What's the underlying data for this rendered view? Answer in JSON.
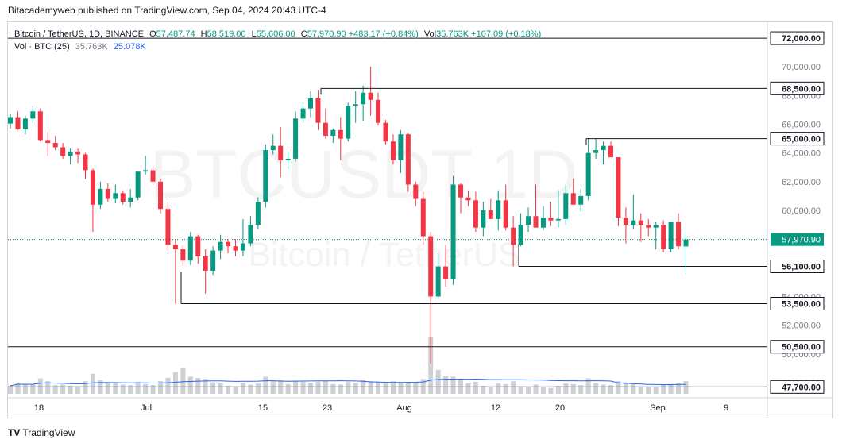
{
  "publisher_line": "Bitacademyweb published on TradingView.com, Sep 04, 2024 20:43 UTC-4",
  "legend": {
    "symbol": "Bitcoin / TetherUS, 1D, BINANCE",
    "o_label": "O",
    "o_value": "57,487.74",
    "h_label": "H",
    "h_value": "58,519.00",
    "l_label": "L",
    "l_value": "55,606.00",
    "c_label": "C",
    "c_value": "57,970.90",
    "change": "+483.17 (+0.84%)",
    "vol_label": "Vol",
    "vol_value": "35.763K",
    "vol_change": "+107.09 (+0.18%)",
    "vol_row_label": "Vol · BTC (25)",
    "vol_row_value": "35.763K",
    "vol_ma_value": "25.078K"
  },
  "watermark": {
    "line1": "BTCUSDT 1D",
    "line2": "Bitcoin / TetherUS"
  },
  "brand": {
    "mark": "TV",
    "name": "TradingView"
  },
  "colors": {
    "up": "#089981",
    "down": "#f23645",
    "vol_bar": "#cfd0d3",
    "vol_ma": "#2962ff",
    "level_line": "#131722",
    "last_price_bg": "#089981"
  },
  "chart_data": {
    "type": "candlestick",
    "symbol": "BTCUSDT",
    "timeframe": "1D",
    "exchange": "BINANCE",
    "ylim": [
      47000,
      73000
    ],
    "y_ticks": [
      "72,000.00",
      "70,000.00",
      "68,000.00",
      "66,000.00",
      "64,000.00",
      "62,000.00",
      "60,000.00",
      "58,000.00",
      "56,000.00",
      "54,000.00",
      "52,000.00",
      "50,000.00",
      "48,000.00"
    ],
    "x_ticks": [
      "18",
      "Jul",
      "15",
      "23",
      "Aug",
      "12",
      "20",
      "Sep",
      "9"
    ],
    "last_price": "57,970.90",
    "horizontal_levels": [
      {
        "price": 72000,
        "label": "72,000.00"
      },
      {
        "price": 68500,
        "label": "68,500.00"
      },
      {
        "price": 65000,
        "label": "65,000.00"
      },
      {
        "price": 56100,
        "label": "56,100.00"
      },
      {
        "price": 53500,
        "label": "53,500.00"
      },
      {
        "price": 50500,
        "label": "50,500.00"
      },
      {
        "price": 47700,
        "label": "47,700.00"
      }
    ],
    "candles": [
      {
        "o": 66050,
        "h": 66700,
        "l": 65700,
        "c": 66500,
        "v": 14
      },
      {
        "o": 66500,
        "h": 66900,
        "l": 65600,
        "c": 65650,
        "v": 19
      },
      {
        "o": 65650,
        "h": 66600,
        "l": 65300,
        "c": 66400,
        "v": 17
      },
      {
        "o": 66400,
        "h": 67300,
        "l": 66100,
        "c": 66900,
        "v": 16
      },
      {
        "o": 66900,
        "h": 67100,
        "l": 64800,
        "c": 64900,
        "v": 27
      },
      {
        "o": 64900,
        "h": 65500,
        "l": 63800,
        "c": 64700,
        "v": 22
      },
      {
        "o": 64700,
        "h": 65200,
        "l": 64200,
        "c": 64400,
        "v": 15
      },
      {
        "o": 64400,
        "h": 64700,
        "l": 63600,
        "c": 63800,
        "v": 16
      },
      {
        "o": 63800,
        "h": 64300,
        "l": 63200,
        "c": 64100,
        "v": 14
      },
      {
        "o": 64100,
        "h": 64300,
        "l": 63300,
        "c": 63900,
        "v": 13
      },
      {
        "o": 63900,
        "h": 64000,
        "l": 62200,
        "c": 62800,
        "v": 22
      },
      {
        "o": 62800,
        "h": 62900,
        "l": 58500,
        "c": 60400,
        "v": 35
      },
      {
        "o": 60400,
        "h": 62000,
        "l": 60100,
        "c": 61500,
        "v": 24
      },
      {
        "o": 61500,
        "h": 61900,
        "l": 60600,
        "c": 60800,
        "v": 20
      },
      {
        "o": 60800,
        "h": 61800,
        "l": 60500,
        "c": 61200,
        "v": 18
      },
      {
        "o": 61200,
        "h": 61400,
        "l": 60400,
        "c": 60600,
        "v": 16
      },
      {
        "o": 60600,
        "h": 61500,
        "l": 60200,
        "c": 60900,
        "v": 15
      },
      {
        "o": 60900,
        "h": 62600,
        "l": 60700,
        "c": 62700,
        "v": 21
      },
      {
        "o": 62700,
        "h": 63800,
        "l": 62500,
        "c": 62800,
        "v": 17
      },
      {
        "o": 62800,
        "h": 63100,
        "l": 61800,
        "c": 62000,
        "v": 15
      },
      {
        "o": 62000,
        "h": 62200,
        "l": 59800,
        "c": 60100,
        "v": 22
      },
      {
        "o": 60100,
        "h": 60600,
        "l": 57200,
        "c": 57600,
        "v": 28
      },
      {
        "o": 57600,
        "h": 58000,
        "l": 53500,
        "c": 57300,
        "v": 38
      },
      {
        "o": 57300,
        "h": 57600,
        "l": 56100,
        "c": 56500,
        "v": 45
      },
      {
        "o": 56500,
        "h": 58500,
        "l": 56200,
        "c": 58200,
        "v": 30
      },
      {
        "o": 58200,
        "h": 58300,
        "l": 56300,
        "c": 56800,
        "v": 28
      },
      {
        "o": 56800,
        "h": 57300,
        "l": 54200,
        "c": 55800,
        "v": 26
      },
      {
        "o": 55800,
        "h": 57500,
        "l": 55500,
        "c": 57200,
        "v": 20
      },
      {
        "o": 57200,
        "h": 58300,
        "l": 56600,
        "c": 57800,
        "v": 18
      },
      {
        "o": 57800,
        "h": 58000,
        "l": 57000,
        "c": 57500,
        "v": 14
      },
      {
        "o": 57500,
        "h": 58000,
        "l": 56800,
        "c": 57200,
        "v": 13
      },
      {
        "o": 57200,
        "h": 59400,
        "l": 56800,
        "c": 57700,
        "v": 19
      },
      {
        "o": 57700,
        "h": 59600,
        "l": 57500,
        "c": 59000,
        "v": 16
      },
      {
        "o": 59000,
        "h": 60900,
        "l": 58700,
        "c": 60600,
        "v": 18
      },
      {
        "o": 60600,
        "h": 64600,
        "l": 60200,
        "c": 64200,
        "v": 30
      },
      {
        "o": 64200,
        "h": 65300,
        "l": 63900,
        "c": 64500,
        "v": 22
      },
      {
        "o": 64500,
        "h": 65800,
        "l": 62300,
        "c": 63500,
        "v": 24
      },
      {
        "o": 63500,
        "h": 64100,
        "l": 62900,
        "c": 63600,
        "v": 17
      },
      {
        "o": 63600,
        "h": 66900,
        "l": 63400,
        "c": 66400,
        "v": 23
      },
      {
        "o": 66400,
        "h": 67500,
        "l": 66100,
        "c": 67100,
        "v": 21
      },
      {
        "o": 67100,
        "h": 68300,
        "l": 66500,
        "c": 67800,
        "v": 19
      },
      {
        "o": 67800,
        "h": 68400,
        "l": 65600,
        "c": 66100,
        "v": 21
      },
      {
        "o": 66100,
        "h": 67100,
        "l": 65000,
        "c": 65200,
        "v": 23
      },
      {
        "o": 65200,
        "h": 65700,
        "l": 64700,
        "c": 65600,
        "v": 17
      },
      {
        "o": 65600,
        "h": 66500,
        "l": 63500,
        "c": 65000,
        "v": 16
      },
      {
        "o": 65000,
        "h": 67500,
        "l": 64800,
        "c": 67300,
        "v": 21
      },
      {
        "o": 67300,
        "h": 68300,
        "l": 66100,
        "c": 67400,
        "v": 19
      },
      {
        "o": 67400,
        "h": 68700,
        "l": 66200,
        "c": 68200,
        "v": 24
      },
      {
        "o": 68200,
        "h": 70000,
        "l": 66600,
        "c": 67700,
        "v": 22
      },
      {
        "o": 67700,
        "h": 68200,
        "l": 65900,
        "c": 66100,
        "v": 21
      },
      {
        "o": 66100,
        "h": 66300,
        "l": 64600,
        "c": 64800,
        "v": 18
      },
      {
        "o": 64800,
        "h": 65300,
        "l": 63200,
        "c": 63500,
        "v": 22
      },
      {
        "o": 63500,
        "h": 65600,
        "l": 62600,
        "c": 65300,
        "v": 19
      },
      {
        "o": 65300,
        "h": 65400,
        "l": 61300,
        "c": 61800,
        "v": 20
      },
      {
        "o": 61800,
        "h": 62000,
        "l": 60300,
        "c": 60800,
        "v": 19
      },
      {
        "o": 60800,
        "h": 61300,
        "l": 57600,
        "c": 58200,
        "v": 26
      },
      {
        "o": 58200,
        "h": 58500,
        "l": 49300,
        "c": 54000,
        "v": 100
      },
      {
        "o": 54000,
        "h": 57000,
        "l": 53800,
        "c": 56100,
        "v": 42
      },
      {
        "o": 56100,
        "h": 57600,
        "l": 54700,
        "c": 55200,
        "v": 32
      },
      {
        "o": 55200,
        "h": 62400,
        "l": 54800,
        "c": 61800,
        "v": 30
      },
      {
        "o": 61800,
        "h": 61900,
        "l": 59800,
        "c": 60900,
        "v": 26
      },
      {
        "o": 60900,
        "h": 61400,
        "l": 60300,
        "c": 60700,
        "v": 19
      },
      {
        "o": 60700,
        "h": 61300,
        "l": 58500,
        "c": 58800,
        "v": 21
      },
      {
        "o": 58800,
        "h": 60600,
        "l": 58200,
        "c": 60000,
        "v": 14
      },
      {
        "o": 60000,
        "h": 60800,
        "l": 59600,
        "c": 59400,
        "v": 11
      },
      {
        "o": 59400,
        "h": 61400,
        "l": 58600,
        "c": 60700,
        "v": 19
      },
      {
        "o": 60700,
        "h": 61800,
        "l": 58600,
        "c": 58800,
        "v": 17
      },
      {
        "o": 58800,
        "h": 59600,
        "l": 56100,
        "c": 57600,
        "v": 22
      },
      {
        "o": 57600,
        "h": 59800,
        "l": 57500,
        "c": 59000,
        "v": 13
      },
      {
        "o": 59000,
        "h": 60200,
        "l": 58500,
        "c": 59600,
        "v": 11
      },
      {
        "o": 59600,
        "h": 61800,
        "l": 58900,
        "c": 58800,
        "v": 16
      },
      {
        "o": 58800,
        "h": 60300,
        "l": 58600,
        "c": 59500,
        "v": 12
      },
      {
        "o": 59500,
        "h": 60600,
        "l": 58900,
        "c": 59300,
        "v": 10
      },
      {
        "o": 59300,
        "h": 61400,
        "l": 58800,
        "c": 59400,
        "v": 14
      },
      {
        "o": 59400,
        "h": 61800,
        "l": 59000,
        "c": 61200,
        "v": 18
      },
      {
        "o": 61200,
        "h": 62200,
        "l": 60500,
        "c": 60400,
        "v": 17
      },
      {
        "o": 60400,
        "h": 61500,
        "l": 59900,
        "c": 61000,
        "v": 15
      },
      {
        "o": 61000,
        "h": 65000,
        "l": 60700,
        "c": 64000,
        "v": 27
      },
      {
        "o": 64000,
        "h": 65000,
        "l": 63600,
        "c": 64200,
        "v": 19
      },
      {
        "o": 64200,
        "h": 64800,
        "l": 63200,
        "c": 64500,
        "v": 16
      },
      {
        "o": 64500,
        "h": 64800,
        "l": 63800,
        "c": 63700,
        "v": 15
      },
      {
        "o": 63700,
        "h": 63700,
        "l": 58900,
        "c": 59500,
        "v": 22
      },
      {
        "o": 59500,
        "h": 60200,
        "l": 57700,
        "c": 59000,
        "v": 20
      },
      {
        "o": 59000,
        "h": 61100,
        "l": 58700,
        "c": 59300,
        "v": 18
      },
      {
        "o": 59300,
        "h": 59800,
        "l": 57800,
        "c": 59000,
        "v": 13
      },
      {
        "o": 59000,
        "h": 59400,
        "l": 58200,
        "c": 58800,
        "v": 12
      },
      {
        "o": 58800,
        "h": 59200,
        "l": 57300,
        "c": 59000,
        "v": 11
      },
      {
        "o": 59000,
        "h": 59300,
        "l": 57100,
        "c": 57300,
        "v": 16
      },
      {
        "o": 57300,
        "h": 59100,
        "l": 57100,
        "c": 59200,
        "v": 17
      },
      {
        "o": 59200,
        "h": 59800,
        "l": 57300,
        "c": 57500,
        "v": 18
      },
      {
        "o": 57487.74,
        "h": 58519.0,
        "l": 55606.0,
        "c": 57970.9,
        "v": 22
      }
    ]
  }
}
